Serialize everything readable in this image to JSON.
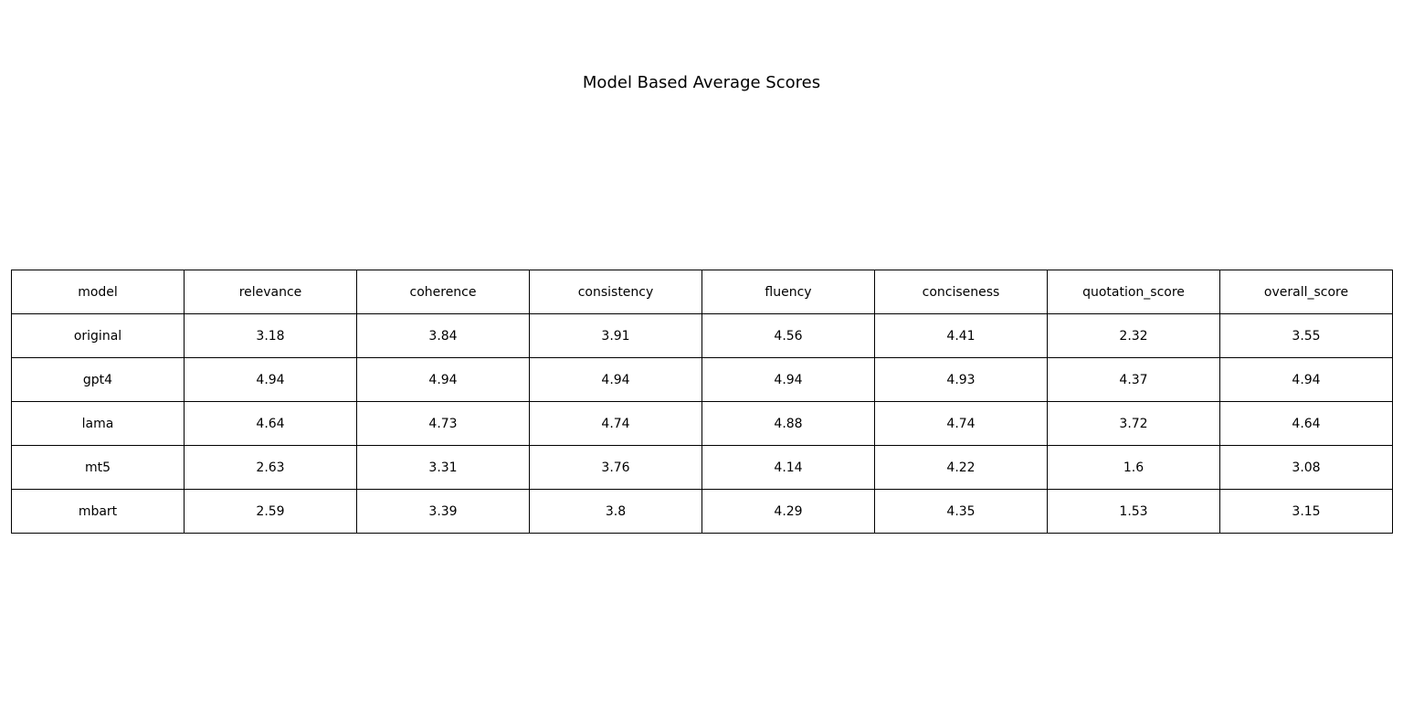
{
  "chart_data": {
    "type": "table",
    "title": "Model Based Average Scores",
    "columns": [
      "model",
      "relevance",
      "coherence",
      "consistency",
      "fluency",
      "conciseness",
      "quotation_score",
      "overall_score"
    ],
    "rows": [
      [
        "original",
        "3.18",
        "3.84",
        "3.91",
        "4.56",
        "4.41",
        "2.32",
        "3.55"
      ],
      [
        "gpt4",
        "4.94",
        "4.94",
        "4.94",
        "4.94",
        "4.93",
        "4.37",
        "4.94"
      ],
      [
        "lama",
        "4.64",
        "4.73",
        "4.74",
        "4.88",
        "4.74",
        "3.72",
        "4.64"
      ],
      [
        "mt5",
        "2.63",
        "3.31",
        "3.76",
        "4.14",
        "4.22",
        "1.6",
        "3.08"
      ],
      [
        "mbart",
        "2.59",
        "3.39",
        "3.8",
        "4.29",
        "4.35",
        "1.53",
        "3.15"
      ]
    ]
  }
}
